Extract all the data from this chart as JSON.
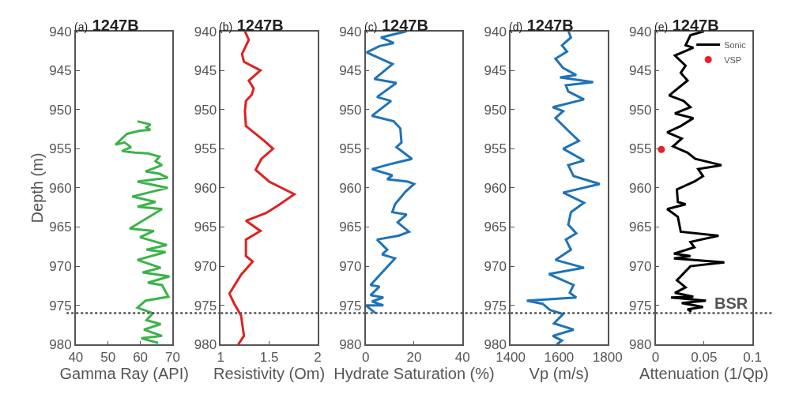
{
  "chart_data": [
    {
      "type": "line",
      "title": "(a) 1247B",
      "xlabel": "Gamma Ray (API)",
      "ylabel": "Depth (m)",
      "xlim": [
        40,
        70
      ],
      "xticks": [
        40,
        50,
        60,
        70
      ],
      "ylim": [
        980,
        940
      ],
      "yticks": [
        940,
        945,
        950,
        955,
        960,
        965,
        970,
        975,
        980
      ],
      "series": [
        {
          "color": "#3cb34a",
          "x": [
            59.1,
            63.1,
            61.9,
            63.1,
            59.9,
            55.9,
            54.3,
            52.3,
            55.1,
            57.1,
            54.3,
            58.3,
            62.3,
            65.9,
            64.7,
            66.7,
            61.6,
            65.9,
            68.5,
            59.1,
            68.5,
            57.5,
            64.7,
            59.1,
            66.7,
            56.7,
            64.2,
            59.9,
            68.2,
            61.9,
            67.8,
            59.1,
            66.3,
            60.7,
            69.0,
            62.3,
            66.7,
            68.7,
            61.6,
            59.1,
            63.9,
            61.9,
            66.3,
            61.1,
            66.7,
            60.3,
            65.5
          ],
          "values": [
            951.5,
            951.9,
            952.3,
            952.6,
            952.7,
            953.1,
            953.7,
            954.5,
            954.2,
            954.8,
            955.3,
            955.5,
            955.6,
            956.0,
            956.6,
            957.1,
            957.9,
            958.2,
            958.7,
            959.2,
            960.0,
            961.1,
            961.8,
            962.4,
            962.7,
            965.2,
            965.5,
            966.3,
            967.3,
            967.9,
            968.2,
            969.2,
            970.2,
            970.8,
            971.3,
            972.1,
            972.4,
            973.9,
            974.4,
            975.3,
            976.0,
            976.9,
            977.4,
            978.1,
            978.9,
            979.2,
            979.8
          ]
        }
      ],
      "ref_lines": [
        {
          "axis": "y",
          "value": 976,
          "color": "#555555",
          "line_style": "dotted"
        }
      ]
    },
    {
      "type": "line",
      "title": "(b) 1247B",
      "xlabel": "Resistivity (Om)",
      "xlim": [
        1,
        2
      ],
      "xticks": [
        1,
        1.5,
        2
      ],
      "ylim": [
        980,
        940
      ],
      "yticks": [
        940,
        945,
        950,
        955,
        960,
        965,
        970,
        975,
        980
      ],
      "series": [
        {
          "color": "#e02020",
          "x": [
            1.25,
            1.29,
            1.22,
            1.24,
            1.41,
            1.29,
            1.34,
            1.32,
            1.26,
            1.25,
            1.26,
            1.45,
            1.54,
            1.42,
            1.36,
            1.5,
            1.76,
            1.61,
            1.47,
            1.26,
            1.41,
            1.26,
            1.26,
            1.33,
            1.21,
            1.09,
            1.14,
            1.21,
            1.24,
            1.18
          ],
          "values": [
            940.0,
            941.1,
            942.9,
            943.9,
            945.0,
            946.3,
            947.3,
            948.1,
            948.9,
            950.2,
            952.1,
            954.0,
            955.0,
            956.3,
            957.7,
            959.2,
            960.8,
            962.1,
            963.2,
            964.2,
            965.5,
            966.6,
            968.7,
            969.4,
            971.1,
            973.5,
            974.8,
            976.3,
            978.9,
            980.0
          ]
        }
      ],
      "ref_lines": [
        {
          "axis": "y",
          "value": 976,
          "color": "#555555",
          "line_style": "dotted"
        }
      ]
    },
    {
      "type": "line",
      "title": "(c) 1247B",
      "xlabel": "Hydrate Saturation (%)",
      "xlim": [
        0,
        40
      ],
      "xticks": [
        0,
        20,
        40
      ],
      "ylim": [
        980,
        940
      ],
      "yticks": [
        940,
        945,
        950,
        955,
        960,
        965,
        970,
        975,
        980
      ],
      "series": [
        {
          "color": "#1f73b7",
          "x": [
            16.9,
            6.3,
            11.6,
            5.7,
            0.4,
            11.1,
            3.6,
            12.7,
            4.7,
            10.5,
            2.6,
            11.6,
            14.3,
            14.8,
            12.7,
            19.1,
            11.0,
            2.6,
            11.0,
            8.9,
            17.4,
            20.0,
            16.4,
            12.1,
            11.0,
            16.9,
            13.2,
            17.9,
            13.6,
            4.7,
            8.9,
            6.8,
            12.1,
            2.0,
            5.7,
            2.0,
            7.3,
            2.6,
            7.3,
            0,
            4.1
          ],
          "values": [
            940.0,
            940.8,
            941.5,
            941.9,
            942.7,
            944.2,
            946.1,
            946.6,
            948.4,
            948.9,
            950.8,
            951.5,
            952.4,
            954.2,
            954.8,
            956.3,
            956.9,
            957.6,
            958.4,
            958.9,
            959.2,
            959.5,
            960.5,
            962.1,
            963.1,
            963.4,
            964.4,
            965.6,
            966.1,
            966.6,
            967.9,
            968.5,
            969.0,
            972.4,
            972.6,
            973.7,
            974.0,
            974.5,
            975.0,
            975.0,
            976.0
          ]
        }
      ],
      "ref_lines": [
        {
          "axis": "y",
          "value": 976,
          "color": "#555555",
          "line_style": "dotted"
        }
      ]
    },
    {
      "type": "line",
      "title": "(d) 1247B",
      "xlabel": "Vp (m/s)",
      "xlim": [
        1400,
        1800
      ],
      "xticks": [
        1400,
        1600,
        1800
      ],
      "ylim": [
        980,
        940
      ],
      "yticks": [
        940,
        945,
        950,
        955,
        960,
        965,
        970,
        975,
        980
      ],
      "series": [
        {
          "color": "#1f73b7",
          "x": [
            1639,
            1649,
            1612,
            1633,
            1585,
            1617,
            1671,
            1604,
            1741,
            1628,
            1638,
            1703,
            1574,
            1617,
            1585,
            1638,
            1682,
            1617,
            1703,
            1638,
            1660,
            1768,
            1617,
            1703,
            1649,
            1638,
            1671,
            1628,
            1649,
            1585,
            1703,
            1558,
            1660,
            1644,
            1671,
            1467,
            1532,
            1563,
            1617,
            1579,
            1660,
            1574,
            1612,
            1590
          ],
          "values": [
            940.0,
            940.8,
            941.8,
            942.6,
            943.5,
            944.7,
            945.6,
            945.9,
            946.5,
            946.9,
            947.7,
            948.7,
            949.7,
            950.2,
            951.1,
            952.7,
            954.0,
            955.0,
            956.5,
            957.1,
            958.5,
            959.5,
            960.6,
            961.9,
            963.1,
            964.7,
            965.8,
            966.6,
            967.9,
            969.2,
            970.2,
            971.0,
            972.4,
            973.4,
            974.0,
            974.4,
            974.8,
            975.6,
            976.1,
            977.3,
            978.1,
            978.9,
            979.5,
            980.0
          ]
        }
      ],
      "ref_lines": [
        {
          "axis": "y",
          "value": 976,
          "color": "#555555",
          "line_style": "dotted"
        }
      ]
    },
    {
      "type": "line",
      "title": "(e) 1247B",
      "xlabel": "Attenuation (1/Qp)",
      "xlim": [
        0,
        0.1
      ],
      "xticks": [
        0,
        0.05,
        0.1
      ],
      "ylim": [
        980,
        940
      ],
      "yticks": [
        940,
        945,
        950,
        955,
        960,
        965,
        970,
        975,
        980
      ],
      "legend": "top right",
      "series": [
        {
          "name": "Sonic",
          "color": "#000000",
          "x": [
            0.05,
            0.036,
            0.031,
            0.039,
            0.02,
            0.031,
            0.026,
            0.033,
            0.014,
            0.029,
            0.036,
            0.02,
            0.039,
            0.026,
            0.012,
            0.027,
            0.018,
            0.033,
            0.041,
            0.068,
            0.044,
            0.049,
            0.04,
            0.022,
            0.023,
            0.031,
            0.012,
            0.023,
            0.026,
            0.065,
            0.036,
            0.04,
            0.019,
            0.036,
            0.019,
            0.071,
            0.036,
            0.022,
            0.031,
            0.02,
            0.039,
            0.016,
            0.052,
            0.027,
            0.049,
            0.033,
            0.037
          ],
          "values": [
            940.0,
            940.5,
            941.8,
            942.1,
            943.1,
            944.4,
            945.3,
            946.3,
            948.2,
            948.9,
            949.7,
            950.5,
            951.1,
            952.1,
            952.9,
            953.7,
            954.7,
            955.5,
            956.3,
            957.1,
            957.6,
            958.5,
            959.2,
            960.2,
            961.8,
            962.1,
            962.7,
            963.7,
            965.6,
            966.1,
            966.9,
            967.6,
            968.4,
            968.7,
            969.0,
            969.5,
            970.0,
            971.8,
            972.7,
            973.4,
            973.9,
            974.0,
            974.4,
            974.7,
            975.2,
            975.5,
            975.8
          ]
        },
        {
          "name": "VSP",
          "type": "scatter",
          "marker": "circle",
          "color": "#e8202a",
          "x": [
            0.006
          ],
          "values": [
            955.1
          ]
        }
      ],
      "ref_lines": [
        {
          "axis": "y",
          "value": 976,
          "color": "#555555",
          "line_style": "dotted",
          "label": "BSR"
        }
      ]
    }
  ]
}
